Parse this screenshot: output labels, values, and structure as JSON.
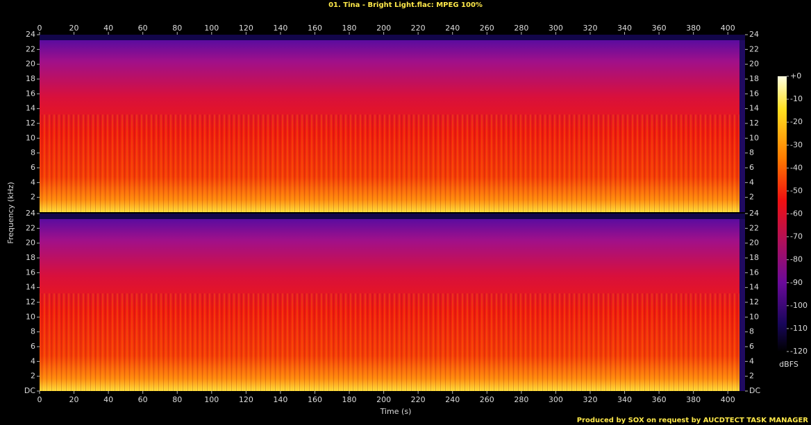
{
  "chart_data": {
    "type": "spectrogram",
    "title": "01. Tina - Bright Light.flac: MPEG 100%",
    "xlabel": "Time (s)",
    "ylabel": "Frequency (kHz)",
    "xlim": [
      0,
      410
    ],
    "xticks": [
      0,
      20,
      40,
      60,
      80,
      100,
      120,
      140,
      160,
      180,
      200,
      220,
      240,
      260,
      280,
      300,
      320,
      340,
      360,
      380,
      400
    ],
    "ylim": [
      0,
      24
    ],
    "yticks": [
      {
        "value": 0,
        "label": "DC"
      },
      2,
      4,
      6,
      8,
      10,
      12,
      14,
      16,
      18,
      20,
      22,
      24
    ],
    "clim": [
      -120,
      0
    ],
    "cticks": [
      {
        "value": 0,
        "label": "+0"
      },
      -10,
      -20,
      -30,
      -40,
      -50,
      -60,
      -70,
      -80,
      -90,
      -100,
      -110,
      -120
    ],
    "clabel": "dBFS",
    "footer": "Produced by SOX on request by AUCDTECT TASK MANAGER"
  }
}
